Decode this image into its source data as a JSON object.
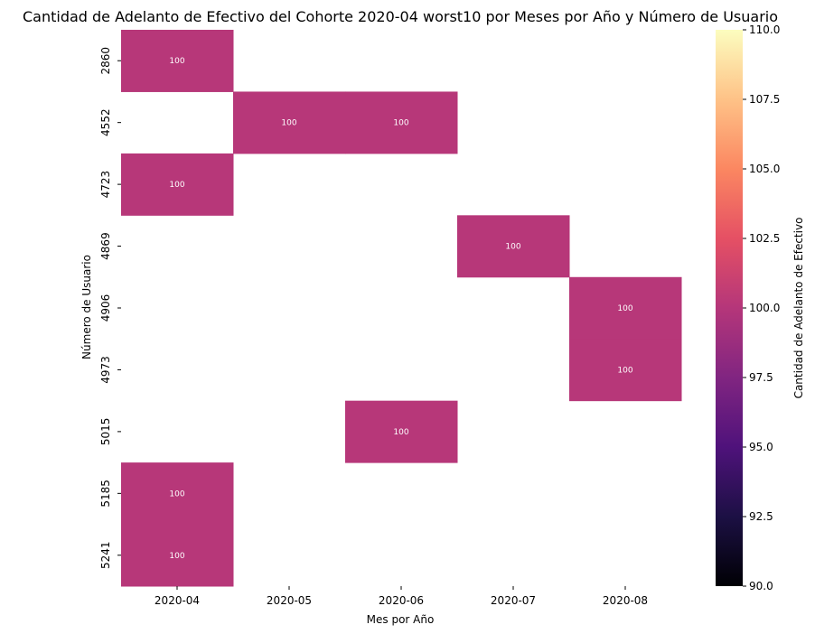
{
  "chart_data": {
    "type": "heatmap",
    "title": "Cantidad de Adelanto de Efectivo del Cohorte 2020-04 worst10 por Meses por Año y Número de Usuario",
    "xlabel": "Mes por Año",
    "ylabel": "Número de Usuario",
    "x_categories": [
      "2020-04",
      "2020-05",
      "2020-06",
      "2020-07",
      "2020-08"
    ],
    "y_categories": [
      "2860",
      "4552",
      "4723",
      "4869",
      "4906",
      "4973",
      "5015",
      "5185",
      "5241"
    ],
    "cells": [
      {
        "x": "2020-04",
        "y": "2860",
        "value": 100
      },
      {
        "x": "2020-05",
        "y": "4552",
        "value": 100
      },
      {
        "x": "2020-06",
        "y": "4552",
        "value": 100
      },
      {
        "x": "2020-04",
        "y": "4723",
        "value": 100
      },
      {
        "x": "2020-07",
        "y": "4869",
        "value": 100
      },
      {
        "x": "2020-08",
        "y": "4906",
        "value": 100
      },
      {
        "x": "2020-08",
        "y": "4973",
        "value": 100
      },
      {
        "x": "2020-06",
        "y": "5015",
        "value": 100
      },
      {
        "x": "2020-04",
        "y": "5185",
        "value": 100
      },
      {
        "x": "2020-04",
        "y": "5241",
        "value": 100
      }
    ],
    "colorbar": {
      "label": "Cantidad de Adelanto de Efectivo",
      "range": [
        90,
        110
      ],
      "ticks": [
        "90.0",
        "92.5",
        "95.0",
        "97.5",
        "100.0",
        "102.5",
        "105.0",
        "107.5",
        "110.0"
      ],
      "colormap": "magma",
      "cell_color": "#b73779"
    }
  }
}
